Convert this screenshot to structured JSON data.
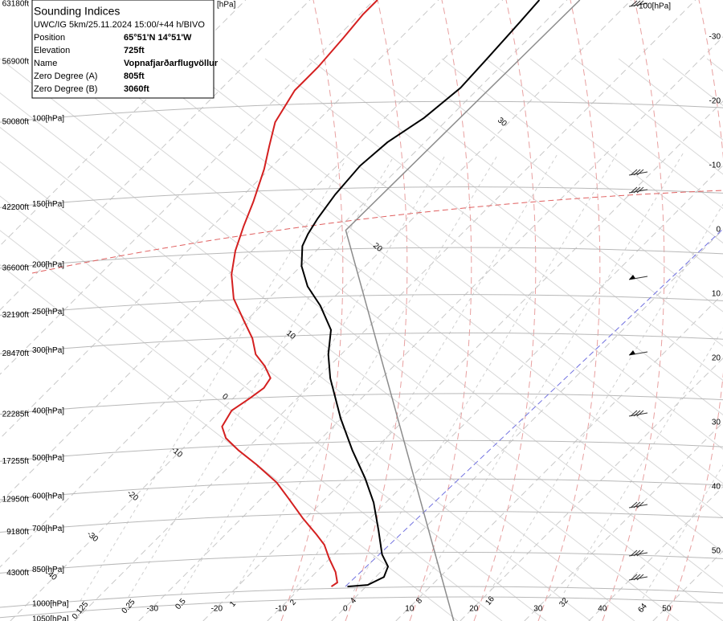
{
  "info_box": {
    "title": "Sounding Indices",
    "subtitle": "UWC/IG 5km/25.11.2024 15:00/+44 h/BIVO",
    "rows": [
      [
        "Position",
        "65°51'N 14°51'W"
      ],
      [
        "Elevation",
        "725ft"
      ],
      [
        "Name",
        "Vopnafjarðarflugvöllur"
      ],
      [
        "Zero Degree (A)",
        "805ft"
      ],
      [
        "Zero Degree (B)",
        "3060ft"
      ]
    ]
  },
  "chart_data": {
    "type": "skewt",
    "ylim": [
      1067,
      56
    ],
    "xlim": [
      -51.6,
      60.9
    ],
    "isobars": [
      {
        "value": 100,
        "label": "100[hPa]"
      },
      {
        "value": 150,
        "label": "150[hPa]"
      },
      {
        "value": 200,
        "label": "200[hPa]"
      },
      {
        "value": 250,
        "label": "250[hPa]"
      },
      {
        "value": 300,
        "label": "300[hPa]"
      },
      {
        "value": 400,
        "label": "400[hPa]"
      },
      {
        "value": 500,
        "label": "500[hPa]"
      },
      {
        "value": 600,
        "label": "600[hPa]"
      },
      {
        "value": 700,
        "label": "700[hPa]"
      },
      {
        "value": 850,
        "label": "850[hPa]"
      },
      {
        "value": 1000,
        "label": "1000[hPa]"
      },
      {
        "value": 1050,
        "label": "1050[hPa]"
      }
    ],
    "top_label": "[hPa]",
    "right_top_label": "100[hPa]",
    "altitudes": [
      {
        "pressure": 57,
        "label": "63180ft"
      },
      {
        "pressure": 75,
        "label": "56900ft"
      },
      {
        "pressure": 100,
        "label": "50080ft"
      },
      {
        "pressure": 150,
        "label": "42200ft"
      },
      {
        "pressure": 200,
        "label": "36600ft"
      },
      {
        "pressure": 250,
        "label": "32190ft"
      },
      {
        "pressure": 300,
        "label": "28470ft"
      },
      {
        "pressure": 400,
        "label": "22285ft"
      },
      {
        "pressure": 500,
        "label": "17255ft"
      },
      {
        "pressure": 600,
        "label": "12950ft"
      },
      {
        "pressure": 700,
        "label": "9180ft"
      },
      {
        "pressure": 850,
        "label": "4300ft"
      }
    ],
    "xticks": [
      -30,
      -20,
      -10,
      0,
      10,
      20,
      30,
      40,
      50
    ],
    "adiabat_labels": [
      30,
      20,
      10,
      0,
      -10,
      -20,
      -30,
      40
    ],
    "mixing_ratios": [
      0.125,
      0.25,
      0.5,
      1,
      2,
      4,
      8,
      16,
      32,
      64
    ],
    "series": [
      {
        "color": "#000000",
        "pressure": [
          906,
          899,
          866,
          824,
          778,
          694,
          608,
          542,
          475,
          408,
          337,
          301,
          268,
          239,
          218,
          198,
          180,
          170,
          158,
          141,
          123,
          110,
          98,
          85,
          74,
          62,
          56
        ],
        "values": [
          -2.9,
          0,
          1.3,
          0.3,
          -2.5,
          -6.8,
          -11.9,
          -17,
          -23.3,
          -30.1,
          -38,
          -42,
          -45.4,
          -50.8,
          -55.8,
          -59.9,
          -62.9,
          -63.9,
          -64.8,
          -65.8,
          -66.4,
          -65.8,
          -63.9,
          -62.9,
          -63.3,
          -63.9,
          -64.3
        ]
      },
      {
        "color": "#d42020",
        "pressure": [
          906,
          889,
          846,
          793,
          743,
          708,
          656,
          596,
          553,
          508,
          475,
          448,
          424,
          393,
          371,
          353,
          337,
          318,
          301,
          279,
          258,
          231,
          206,
          184,
          164,
          146,
          125,
          112,
          100,
          86,
          77,
          67,
          60,
          56
        ],
        "values": [
          -5.4,
          -5.1,
          -7,
          -10.1,
          -13,
          -15.8,
          -20.4,
          -25.8,
          -30.1,
          -36,
          -41,
          -44.9,
          -47.3,
          -48.3,
          -47.4,
          -46.8,
          -47.3,
          -50.1,
          -53.3,
          -56.3,
          -60.1,
          -65.4,
          -69.5,
          -72.6,
          -75.1,
          -77.4,
          -80.8,
          -83.6,
          -86.4,
          -88.3,
          -88.3,
          -88.9,
          -89.5,
          -89.5
        ]
      },
      {
        "color": "#8c8c8c",
        "pressure": [
          1067,
          167,
          56
        ],
        "values": [
          19,
          -58.6,
          -58
        ]
      }
    ]
  }
}
